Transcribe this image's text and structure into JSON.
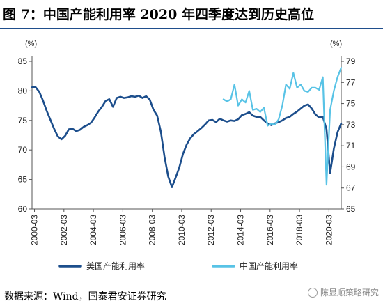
{
  "title": "图 7：中国产能利用率 2020 年四季度达到历史高位",
  "source": "数据来源：Wind，国泰君安证券研究",
  "watermark": "陈显顺策略研究",
  "colors": {
    "us": "#1c4e8c",
    "china": "#58c3e6",
    "rule": "#1f4e8c"
  },
  "chart_data": {
    "type": "line",
    "title": "",
    "left_axis": {
      "unit": "(%)",
      "ylim": [
        60,
        85
      ],
      "ticks": [
        60,
        65,
        70,
        75,
        80,
        85
      ]
    },
    "right_axis": {
      "unit": "(%)",
      "ylim": [
        65,
        79
      ],
      "ticks": [
        65,
        67,
        69,
        71,
        73,
        75,
        77,
        79
      ]
    },
    "x_ticks": [
      "2000-03",
      "2002-03",
      "2004-03",
      "2006-03",
      "2008-03",
      "2010-03",
      "2012-03",
      "2014-03",
      "2016-03",
      "2018-03",
      "2020-03"
    ],
    "xlim": [
      2000.0,
      2021.0
    ],
    "legend_placement": "bottom",
    "series": [
      {
        "name": "美国产能利用率",
        "axis": "left",
        "x": [
          2000.0,
          2000.25,
          2000.5,
          2000.75,
          2001.0,
          2001.25,
          2001.5,
          2001.75,
          2002.0,
          2002.25,
          2002.5,
          2002.75,
          2003.0,
          2003.25,
          2003.5,
          2003.75,
          2004.0,
          2004.25,
          2004.5,
          2004.75,
          2005.0,
          2005.25,
          2005.5,
          2005.75,
          2006.0,
          2006.25,
          2006.5,
          2006.75,
          2007.0,
          2007.25,
          2007.5,
          2007.75,
          2008.0,
          2008.25,
          2008.5,
          2008.75,
          2009.0,
          2009.25,
          2009.5,
          2009.75,
          2010.0,
          2010.25,
          2010.5,
          2010.75,
          2011.0,
          2011.25,
          2011.5,
          2011.75,
          2012.0,
          2012.25,
          2012.5,
          2012.75,
          2013.0,
          2013.25,
          2013.5,
          2013.75,
          2014.0,
          2014.25,
          2014.5,
          2014.75,
          2015.0,
          2015.25,
          2015.5,
          2015.75,
          2016.0,
          2016.25,
          2016.5,
          2016.75,
          2017.0,
          2017.25,
          2017.5,
          2017.75,
          2018.0,
          2018.25,
          2018.5,
          2018.75,
          2019.0,
          2019.25,
          2019.5,
          2019.75,
          2020.0,
          2020.25,
          2020.5,
          2020.75,
          2021.0
        ],
        "values": [
          80.6,
          80.6,
          79.8,
          78.3,
          76.6,
          75.1,
          73.6,
          72.3,
          71.8,
          72.4,
          73.5,
          73.6,
          73.2,
          73.4,
          73.9,
          74.2,
          74.6,
          75.5,
          76.5,
          77.3,
          78.3,
          78.6,
          77.3,
          78.8,
          79.0,
          78.8,
          78.9,
          79.1,
          79.0,
          79.2,
          78.8,
          79.1,
          78.5,
          76.8,
          75.8,
          73.1,
          68.8,
          65.5,
          63.7,
          65.3,
          67.0,
          69.3,
          70.9,
          72.0,
          72.7,
          73.2,
          73.7,
          74.3,
          75.0,
          75.1,
          74.7,
          75.3,
          75.0,
          74.8,
          75.0,
          74.9,
          75.2,
          75.9,
          76.1,
          76.4,
          75.8,
          75.6,
          75.6,
          75.0,
          74.5,
          74.2,
          74.5,
          74.7,
          75.0,
          75.4,
          75.6,
          76.1,
          76.5,
          77.0,
          77.5,
          77.7,
          77.0,
          76.0,
          75.5,
          75.6,
          73.5,
          66.1,
          70.2,
          73.0,
          74.5
        ]
      },
      {
        "name": "中国产能利用率",
        "axis": "right",
        "x": [
          2013.0,
          2013.25,
          2013.5,
          2013.75,
          2014.0,
          2014.25,
          2014.5,
          2014.75,
          2015.0,
          2015.25,
          2015.5,
          2015.75,
          2016.0,
          2016.25,
          2016.5,
          2016.75,
          2017.0,
          2017.25,
          2017.5,
          2017.75,
          2018.0,
          2018.25,
          2018.5,
          2018.75,
          2019.0,
          2019.25,
          2019.5,
          2019.75,
          2020.0,
          2020.25,
          2020.5,
          2020.75,
          2021.0
        ],
        "values": [
          75.4,
          75.2,
          75.4,
          76.8,
          74.8,
          75.4,
          75.1,
          76.2,
          74.4,
          74.5,
          74.2,
          74.6,
          72.9,
          73.1,
          73.0,
          73.5,
          74.8,
          76.8,
          76.4,
          77.9,
          76.5,
          76.8,
          76.2,
          76.1,
          76.5,
          76.5,
          76.3,
          77.5,
          67.3,
          74.4,
          76.2,
          77.5,
          78.4
        ]
      }
    ]
  }
}
